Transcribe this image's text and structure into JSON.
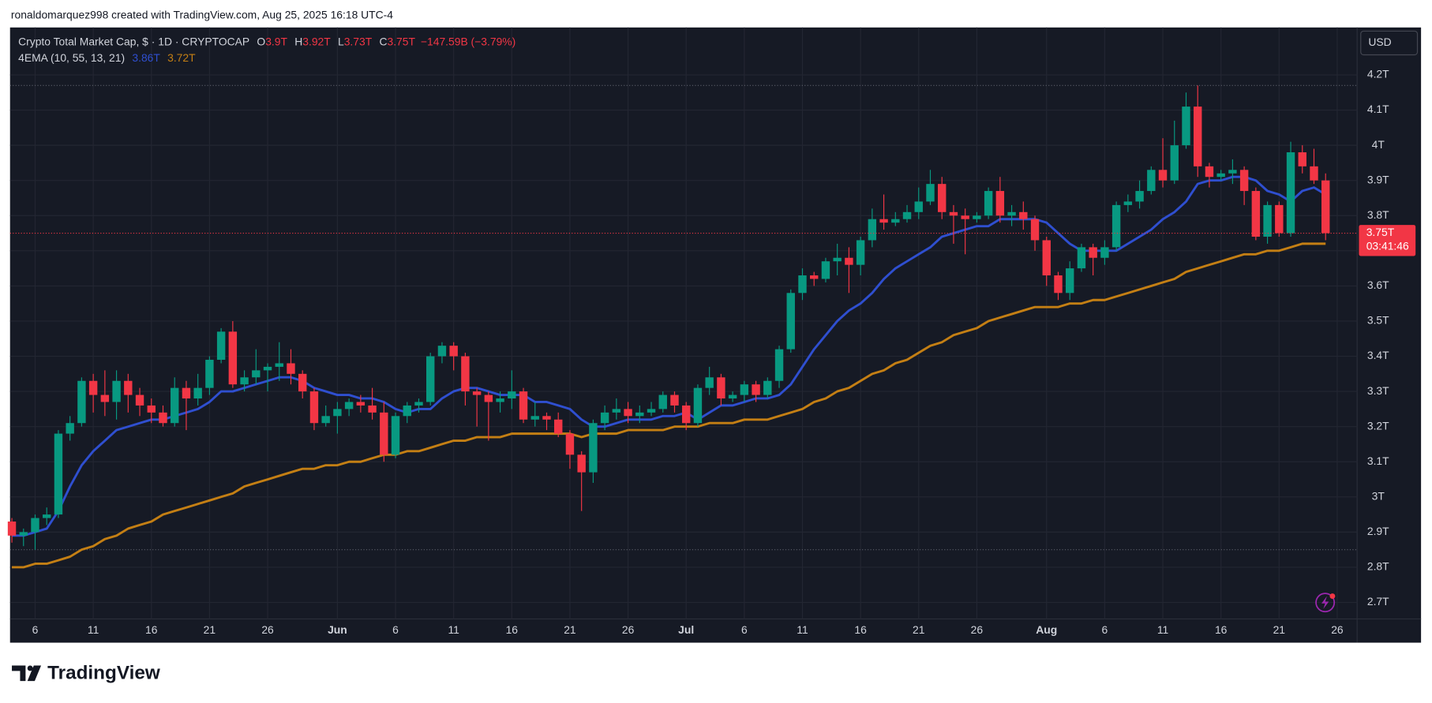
{
  "attribution": "ronaldomarquez998 created with TradingView.com, Aug 25, 2025 16:18 UTC-4",
  "brand": "TradingView",
  "chart_data": {
    "type": "candlestick",
    "title": "Crypto Total Market Cap, $ · 1D · CRYPTOCAP",
    "ohlc_legend": [
      {
        "label": "O",
        "value": "3.9T"
      },
      {
        "label": "H",
        "value": "3.92T"
      },
      {
        "label": "L",
        "value": "3.73T"
      },
      {
        "label": "C",
        "value": "3.75T"
      }
    ],
    "change": "−147.59B (−3.79%)",
    "currency": "USD",
    "last_price_label": "3.75T",
    "countdown": "03:41:46",
    "up_color": "#089981",
    "down_color": "#f23645",
    "grid": true,
    "ylim": [
      2.653,
      4.335
    ],
    "yticks": [
      {
        "value": 2.7,
        "label": "2.7T"
      },
      {
        "value": 2.8,
        "label": "2.8T"
      },
      {
        "value": 2.9,
        "label": "2.9T"
      },
      {
        "value": 3,
        "label": "3T"
      },
      {
        "value": 3.1,
        "label": "3.1T"
      },
      {
        "value": 3.2,
        "label": "3.2T"
      },
      {
        "value": 3.3,
        "label": "3.3T"
      },
      {
        "value": 3.4,
        "label": "3.4T"
      },
      {
        "value": 3.5,
        "label": "3.5T"
      },
      {
        "value": 3.6,
        "label": "3.6T"
      },
      {
        "value": 3.7,
        "label": "3.7T"
      },
      {
        "value": 3.8,
        "label": "3.8T"
      },
      {
        "value": 3.9,
        "label": "3.9T"
      },
      {
        "value": 4,
        "label": "4T"
      },
      {
        "value": 4.1,
        "label": "4.1T"
      },
      {
        "value": 4.2,
        "label": "4.2T"
      }
    ],
    "categories": [
      null,
      null,
      "6",
      null,
      null,
      null,
      null,
      "11",
      null,
      null,
      null,
      null,
      "16",
      null,
      null,
      null,
      null,
      "21",
      null,
      null,
      null,
      null,
      "26",
      null,
      null,
      null,
      null,
      null,
      "Jun",
      null,
      null,
      null,
      null,
      "6",
      null,
      null,
      null,
      null,
      "11",
      null,
      null,
      null,
      null,
      "16",
      null,
      null,
      null,
      null,
      "21",
      null,
      null,
      null,
      null,
      "26",
      null,
      null,
      null,
      null,
      "Jul",
      null,
      null,
      null,
      null,
      "6",
      null,
      null,
      null,
      null,
      "11",
      null,
      null,
      null,
      null,
      "16",
      null,
      null,
      null,
      null,
      "21",
      null,
      null,
      null,
      null,
      "26",
      null,
      null,
      null,
      null,
      null,
      "Aug",
      null,
      null,
      null,
      null,
      "6",
      null,
      null,
      null,
      null,
      "11",
      null,
      null,
      null,
      null,
      "16",
      null,
      null,
      null,
      null,
      "21",
      null,
      null,
      null,
      null,
      "26"
    ],
    "open": [
      2.93,
      2.89,
      2.9,
      2.94,
      2.95,
      3.18,
      3.21,
      3.33,
      3.29,
      3.27,
      3.33,
      3.29,
      3.26,
      3.24,
      3.21,
      3.31,
      3.28,
      3.31,
      3.39,
      3.47,
      3.32,
      3.34,
      3.36,
      3.37,
      3.38,
      3.35,
      3.3,
      3.21,
      3.23,
      3.25,
      3.27,
      3.26,
      3.24,
      3.12,
      3.23,
      3.26,
      3.27,
      3.4,
      3.43,
      3.4,
      3.3,
      3.29,
      3.27,
      3.28,
      3.3,
      3.22,
      3.23,
      3.22,
      3.18,
      3.12,
      3.07,
      3.21,
      3.24,
      3.25,
      3.23,
      3.24,
      3.25,
      3.29,
      3.26,
      3.21,
      3.31,
      3.34,
      3.28,
      3.29,
      3.32,
      3.29,
      3.33,
      3.42,
      3.58,
      3.63,
      3.62,
      3.67,
      3.68,
      3.66,
      3.73,
      3.79,
      3.78,
      3.79,
      3.81,
      3.84,
      3.89,
      3.81,
      3.8,
      3.79,
      3.8,
      3.87,
      3.8,
      3.81,
      3.79,
      3.73,
      3.63,
      3.58,
      3.65,
      3.71,
      3.68,
      3.71,
      3.83,
      3.84,
      3.87,
      3.93,
      3.9,
      4.0,
      4.11,
      3.94,
      3.91,
      3.92,
      3.93,
      3.87,
      3.74,
      3.83,
      3.75,
      3.98,
      3.94,
      3.9,
      null
    ],
    "high": [
      2.94,
      2.91,
      2.95,
      2.97,
      3.19,
      3.23,
      3.34,
      3.35,
      3.36,
      3.36,
      3.35,
      3.31,
      3.28,
      3.26,
      3.34,
      3.33,
      3.35,
      3.4,
      3.48,
      3.5,
      3.36,
      3.42,
      3.38,
      3.44,
      3.42,
      3.36,
      3.31,
      3.26,
      3.27,
      3.28,
      3.29,
      3.31,
      3.27,
      3.24,
      3.27,
      3.28,
      3.41,
      3.44,
      3.44,
      3.41,
      3.31,
      3.3,
      3.3,
      3.36,
      3.31,
      3.27,
      3.24,
      3.24,
      3.19,
      3.13,
      3.22,
      3.26,
      3.28,
      3.27,
      3.26,
      3.27,
      3.3,
      3.3,
      3.27,
      3.32,
      3.37,
      3.35,
      3.3,
      3.33,
      3.33,
      3.34,
      3.43,
      3.59,
      3.65,
      3.64,
      3.68,
      3.72,
      3.71,
      3.74,
      3.82,
      3.86,
      3.81,
      3.83,
      3.88,
      3.93,
      3.91,
      3.83,
      3.82,
      3.81,
      3.88,
      3.91,
      3.83,
      3.84,
      3.8,
      3.74,
      3.64,
      3.67,
      3.72,
      3.72,
      3.73,
      3.84,
      3.86,
      3.9,
      3.94,
      4.02,
      4.07,
      4.15,
      4.17,
      3.95,
      3.93,
      3.96,
      3.94,
      3.88,
      3.84,
      3.84,
      4.01,
      4.0,
      3.99,
      3.92,
      null
    ],
    "low": [
      2.87,
      2.86,
      2.85,
      2.92,
      2.94,
      3.16,
      3.2,
      3.24,
      3.23,
      3.22,
      3.24,
      3.23,
      3.21,
      3.2,
      3.2,
      3.19,
      3.26,
      3.29,
      3.38,
      3.31,
      3.3,
      3.32,
      3.3,
      3.33,
      3.32,
      3.28,
      3.19,
      3.2,
      3.18,
      3.23,
      3.24,
      3.22,
      3.1,
      3.11,
      3.21,
      3.24,
      3.26,
      3.38,
      3.36,
      3.26,
      3.2,
      3.16,
      3.24,
      3.25,
      3.21,
      3.2,
      3.19,
      3.17,
      3.08,
      2.96,
      3.04,
      3.19,
      3.22,
      3.21,
      3.21,
      3.23,
      3.24,
      3.24,
      3.19,
      3.2,
      3.29,
      3.26,
      3.27,
      3.27,
      3.27,
      3.28,
      3.31,
      3.41,
      3.56,
      3.6,
      3.61,
      3.63,
      3.58,
      3.63,
      3.71,
      3.76,
      3.77,
      3.78,
      3.79,
      3.83,
      3.79,
      3.72,
      3.69,
      3.78,
      3.79,
      3.78,
      3.77,
      3.76,
      3.7,
      3.6,
      3.56,
      3.56,
      3.64,
      3.63,
      3.66,
      3.7,
      3.81,
      3.82,
      3.86,
      3.88,
      3.89,
      3.99,
      3.91,
      3.88,
      3.9,
      3.89,
      3.83,
      3.73,
      3.72,
      3.74,
      3.74,
      3.92,
      3.89,
      3.73,
      null
    ],
    "close": [
      2.89,
      2.9,
      2.94,
      2.95,
      3.18,
      3.21,
      3.33,
      3.29,
      3.27,
      3.33,
      3.29,
      3.26,
      3.24,
      3.21,
      3.31,
      3.28,
      3.31,
      3.39,
      3.47,
      3.32,
      3.34,
      3.36,
      3.37,
      3.38,
      3.35,
      3.3,
      3.21,
      3.23,
      3.25,
      3.27,
      3.26,
      3.24,
      3.12,
      3.23,
      3.26,
      3.27,
      3.4,
      3.43,
      3.4,
      3.3,
      3.29,
      3.27,
      3.28,
      3.3,
      3.22,
      3.23,
      3.22,
      3.18,
      3.12,
      3.07,
      3.21,
      3.24,
      3.25,
      3.23,
      3.24,
      3.25,
      3.29,
      3.26,
      3.21,
      3.31,
      3.34,
      3.28,
      3.29,
      3.32,
      3.29,
      3.33,
      3.42,
      3.58,
      3.63,
      3.62,
      3.67,
      3.68,
      3.66,
      3.73,
      3.79,
      3.78,
      3.79,
      3.81,
      3.84,
      3.89,
      3.81,
      3.8,
      3.79,
      3.8,
      3.87,
      3.8,
      3.81,
      3.79,
      3.73,
      3.63,
      3.58,
      3.65,
      3.71,
      3.68,
      3.71,
      3.83,
      3.84,
      3.87,
      3.93,
      3.9,
      4.0,
      4.11,
      3.94,
      3.91,
      3.92,
      3.93,
      3.87,
      3.74,
      3.83,
      3.75,
      3.98,
      3.94,
      3.9,
      3.75,
      null
    ],
    "indicator": {
      "name": "4EMA (10, 55, 13, 21)",
      "series": [
        {
          "color": "#2f4fd0",
          "last_label": "3.86T",
          "values": [
            2.89,
            2.89,
            2.9,
            2.91,
            2.96,
            3.03,
            3.09,
            3.13,
            3.16,
            3.19,
            3.2,
            3.21,
            3.22,
            3.22,
            3.23,
            3.24,
            3.25,
            3.27,
            3.3,
            3.3,
            3.31,
            3.32,
            3.33,
            3.34,
            3.34,
            3.33,
            3.31,
            3.3,
            3.29,
            3.29,
            3.28,
            3.28,
            3.27,
            3.25,
            3.24,
            3.25,
            3.25,
            3.28,
            3.3,
            3.31,
            3.31,
            3.3,
            3.29,
            3.29,
            3.29,
            3.27,
            3.27,
            3.26,
            3.25,
            3.22,
            3.2,
            3.2,
            3.21,
            3.22,
            3.22,
            3.22,
            3.23,
            3.23,
            3.24,
            3.22,
            3.24,
            3.26,
            3.26,
            3.27,
            3.28,
            3.28,
            3.29,
            3.32,
            3.37,
            3.42,
            3.46,
            3.5,
            3.53,
            3.55,
            3.58,
            3.62,
            3.65,
            3.67,
            3.69,
            3.71,
            3.74,
            3.75,
            3.76,
            3.77,
            3.77,
            3.79,
            3.79,
            3.79,
            3.79,
            3.78,
            3.75,
            3.72,
            3.7,
            3.7,
            3.7,
            3.7,
            3.72,
            3.74,
            3.76,
            3.79,
            3.81,
            3.84,
            3.89,
            3.9,
            3.9,
            3.91,
            3.91,
            3.9,
            3.87,
            3.86,
            3.84,
            3.87,
            3.88,
            3.86,
            null
          ]
        },
        {
          "color": "#c47f14",
          "last_label": "3.72T",
          "values": [
            2.8,
            2.8,
            2.81,
            2.81,
            2.82,
            2.83,
            2.85,
            2.86,
            2.88,
            2.89,
            2.91,
            2.92,
            2.93,
            2.95,
            2.96,
            2.97,
            2.98,
            2.99,
            3.0,
            3.01,
            3.03,
            3.04,
            3.05,
            3.06,
            3.07,
            3.08,
            3.08,
            3.09,
            3.09,
            3.1,
            3.1,
            3.11,
            3.12,
            3.12,
            3.13,
            3.13,
            3.14,
            3.15,
            3.16,
            3.16,
            3.17,
            3.17,
            3.17,
            3.18,
            3.18,
            3.18,
            3.18,
            3.18,
            3.18,
            3.17,
            3.18,
            3.18,
            3.18,
            3.19,
            3.19,
            3.19,
            3.19,
            3.2,
            3.2,
            3.2,
            3.21,
            3.21,
            3.21,
            3.22,
            3.22,
            3.22,
            3.23,
            3.24,
            3.25,
            3.27,
            3.28,
            3.3,
            3.31,
            3.33,
            3.35,
            3.36,
            3.38,
            3.39,
            3.41,
            3.43,
            3.44,
            3.46,
            3.47,
            3.48,
            3.5,
            3.51,
            3.52,
            3.53,
            3.54,
            3.54,
            3.54,
            3.55,
            3.55,
            3.56,
            3.56,
            3.57,
            3.58,
            3.59,
            3.6,
            3.61,
            3.62,
            3.64,
            3.65,
            3.66,
            3.67,
            3.68,
            3.69,
            3.69,
            3.7,
            3.7,
            3.71,
            3.72,
            3.72,
            3.72,
            null
          ]
        }
      ]
    }
  }
}
